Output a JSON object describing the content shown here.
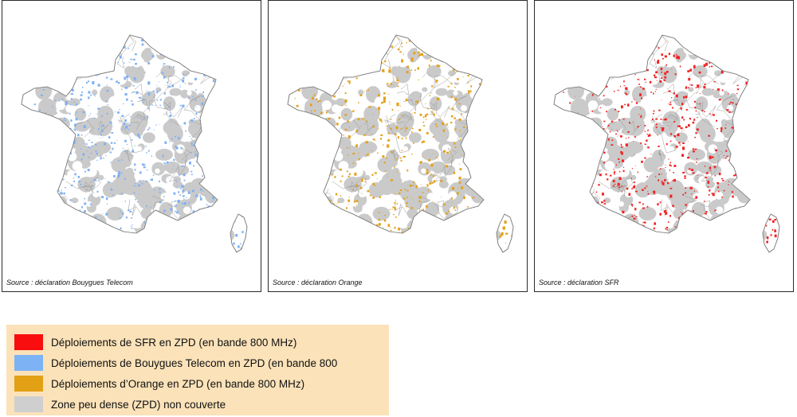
{
  "panels": [
    {
      "operator": "bouygues",
      "color": "#7eb1f4",
      "source": "Source : déclaration Bouygues Telecom"
    },
    {
      "operator": "orange",
      "color": "#e4a11b",
      "source": "Source : déclaration Orange"
    },
    {
      "operator": "sfr",
      "color": "#f22222",
      "source": "Source : déclaration SFR"
    }
  ],
  "colors": {
    "zpd_uncovered": "#cacaca",
    "country_fill": "#ffffff",
    "boundary": "#8a8a8a"
  },
  "legend": {
    "items": [
      {
        "label": "Déploiements de SFR en ZPD (en bande 800 MHz)",
        "color": "#f80e0e"
      },
      {
        "label": "Déploiements de Bouygues Telecom en ZPD (en bande 800",
        "color": "#7db3f5"
      },
      {
        "label": "Déploiements d’Orange en ZPD (en bande 800 MHz)",
        "color": "#e2a015"
      },
      {
        "label": "Zone peu dense (ZPD) non couverte",
        "color": "#cfcfcf"
      }
    ]
  }
}
